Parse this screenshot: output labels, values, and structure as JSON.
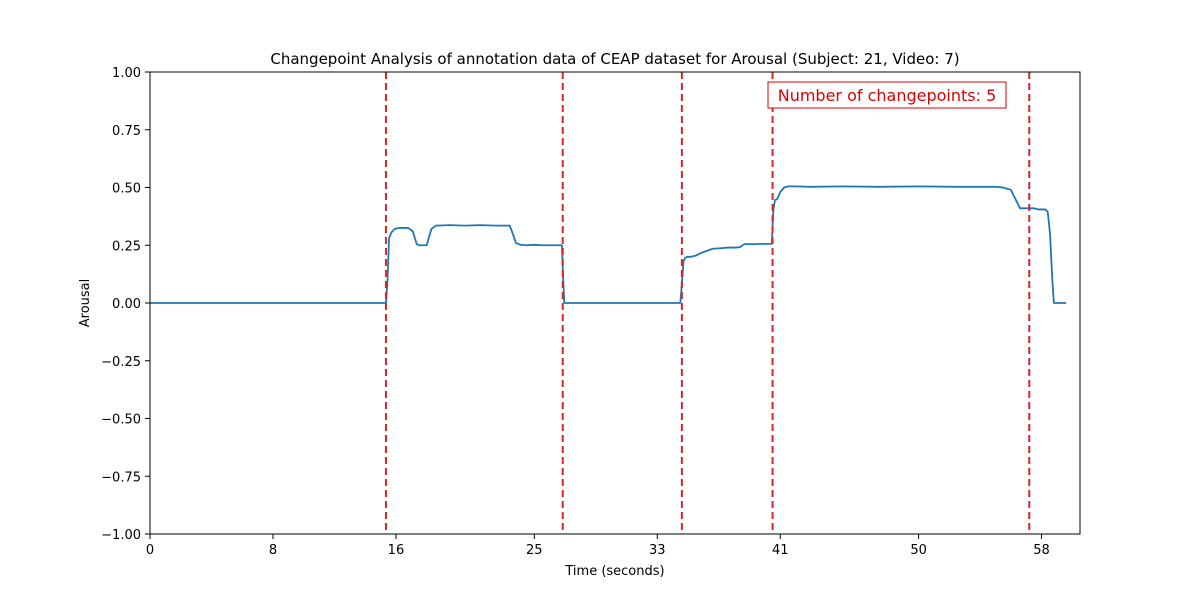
{
  "chart_data": {
    "type": "line",
    "title": "Changepoint Analysis of annotation data of CEAP dataset for Arousal (Subject: 21, Video: 7)",
    "xlabel": "Time (seconds)",
    "ylabel": "Arousal",
    "xlim": [
      0,
      60.5
    ],
    "ylim": [
      -1.0,
      1.0
    ],
    "x_ticks": [
      0,
      8,
      16,
      25,
      33,
      41,
      50,
      58
    ],
    "x_tick_labels": [
      "0",
      "8",
      "16",
      "25",
      "33",
      "41",
      "50",
      "58"
    ],
    "y_ticks": [
      -1.0,
      -0.75,
      -0.5,
      -0.25,
      0.0,
      0.25,
      0.5,
      0.75,
      1.0
    ],
    "y_tick_labels": [
      "−1.00",
      "−0.75",
      "−0.50",
      "−0.25",
      "0.00",
      "0.25",
      "0.50",
      "0.75",
      "1.00"
    ],
    "grid": false,
    "series": [
      {
        "color": "#1f77b4",
        "x": [
          0,
          15.35,
          15.45,
          15.55,
          15.7,
          15.9,
          16.2,
          16.8,
          17.1,
          17.35,
          17.5,
          17.8,
          18.0,
          18.3,
          18.6,
          19.5,
          20.5,
          21.5,
          22.5,
          23.4,
          23.6,
          23.8,
          24.1,
          24.5,
          25.0,
          25.5,
          26.0,
          26.5,
          26.8,
          26.85,
          26.95,
          27.1,
          30.0,
          33.0,
          34.5,
          34.62,
          34.7,
          34.8,
          34.95,
          35.2,
          35.5,
          35.8,
          36.2,
          36.6,
          37.1,
          37.6,
          38.1,
          38.4,
          38.55,
          38.7,
          39.3,
          40.0,
          40.45,
          40.55,
          40.65,
          40.8,
          41.0,
          41.25,
          41.5,
          42.0,
          43.0,
          45.0,
          47.5,
          50.0,
          52.5,
          55.0,
          55.5,
          56.0,
          56.3,
          56.6,
          57.0,
          57.5,
          57.8,
          58.1,
          58.25,
          58.4,
          58.55,
          58.7,
          58.8,
          59.0,
          59.6
        ],
        "y": [
          0.0,
          0.0,
          0.1,
          0.28,
          0.305,
          0.32,
          0.325,
          0.325,
          0.31,
          0.255,
          0.25,
          0.25,
          0.25,
          0.32,
          0.335,
          0.337,
          0.335,
          0.337,
          0.335,
          0.335,
          0.3,
          0.26,
          0.252,
          0.25,
          0.252,
          0.25,
          0.25,
          0.25,
          0.25,
          0.15,
          0.0,
          0.0,
          0.0,
          0.0,
          0.0,
          0.1,
          0.18,
          0.195,
          0.2,
          0.2,
          0.205,
          0.215,
          0.225,
          0.235,
          0.237,
          0.24,
          0.24,
          0.242,
          0.25,
          0.255,
          0.255,
          0.256,
          0.256,
          0.4,
          0.445,
          0.45,
          0.48,
          0.5,
          0.505,
          0.505,
          0.503,
          0.505,
          0.503,
          0.505,
          0.503,
          0.503,
          0.5,
          0.49,
          0.45,
          0.41,
          0.41,
          0.41,
          0.405,
          0.405,
          0.405,
          0.395,
          0.3,
          0.1,
          0.0,
          0.0,
          0.0
        ]
      }
    ],
    "changepoints": {
      "color": "#d62728",
      "x": [
        15.35,
        26.85,
        34.6,
        40.5,
        57.2
      ]
    },
    "annotation": {
      "text": "Number of changepoints: 5",
      "color": "#dd0000",
      "placement": "top-right"
    }
  }
}
